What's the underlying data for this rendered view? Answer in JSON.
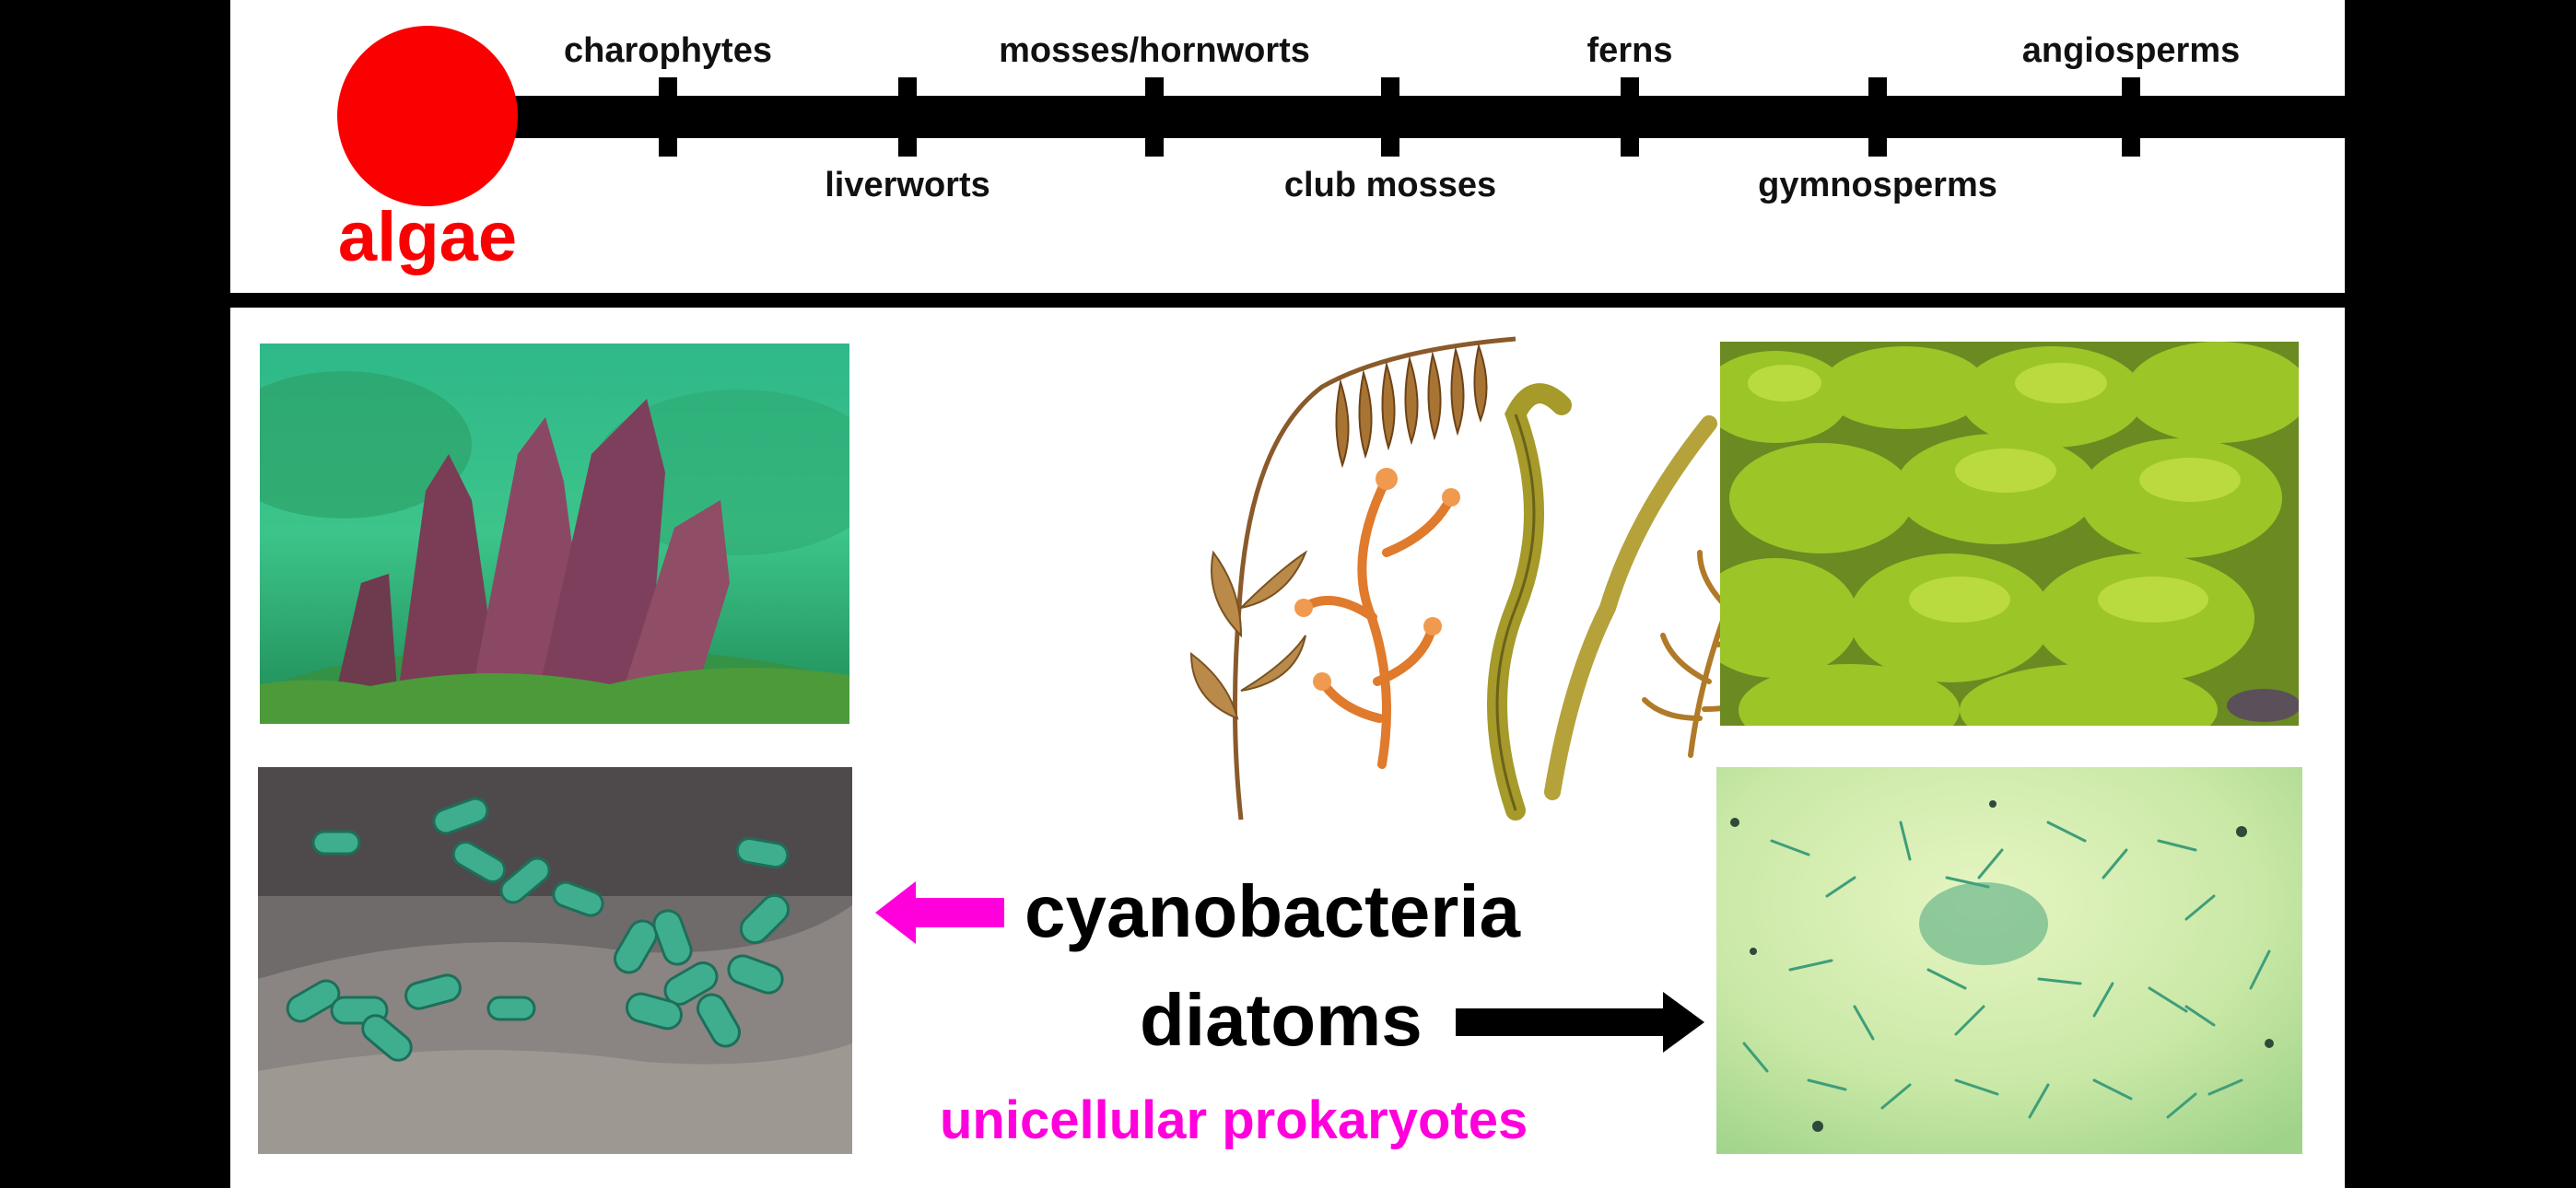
{
  "timeline": {
    "root_label": "algae",
    "upper_labels": [
      "charophytes",
      "mosses/hornworts",
      "ferns",
      "angiosperms"
    ],
    "lower_labels": [
      "liverworts",
      "club mosses",
      "gymnosperms"
    ]
  },
  "center": {
    "label_cyanobacteria": "cyanobacteria",
    "label_diatoms": "diatoms",
    "label_unicellular": "unicellular prokaryotes"
  },
  "colors": {
    "algae_red": "#fa0000",
    "magenta": "#ff00dd",
    "black": "#000000"
  },
  "images": {
    "top_left": "red-seaweed-photo",
    "top_center": "seaweed-illustration",
    "top_right": "green-algae-rocks-photo",
    "bottom_left": "cyanobacteria-micrograph",
    "bottom_right": "diatoms-micrograph"
  }
}
